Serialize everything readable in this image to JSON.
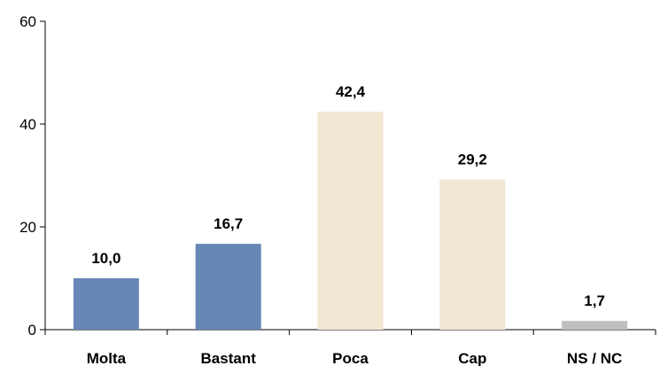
{
  "chart_data": {
    "type": "bar",
    "categories": [
      "Molta",
      "Bastant",
      "Poca",
      "Cap",
      "NS / NC"
    ],
    "values": [
      10.0,
      16.7,
      42.4,
      29.2,
      1.7
    ],
    "data_labels": [
      "10,0",
      "16,7",
      "42,4",
      "29,2",
      "1,7"
    ],
    "bar_colors": [
      "#6787b7",
      "#6787b7",
      "#f1e7d3",
      "#f1e7d3",
      "#bfbfbf"
    ],
    "ylim": [
      0,
      60
    ],
    "yticks": [
      0,
      20,
      40,
      60
    ],
    "ytick_labels": [
      "0",
      "20",
      "40",
      "60"
    ],
    "grid": false,
    "legend": "none"
  }
}
